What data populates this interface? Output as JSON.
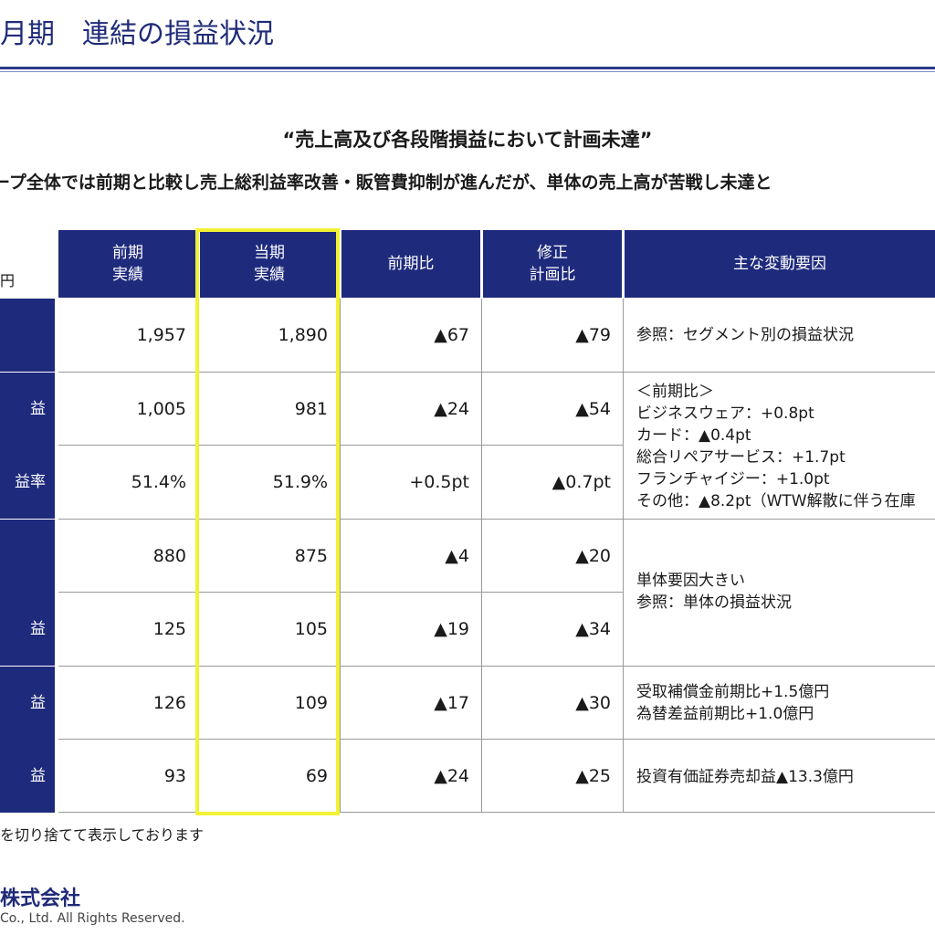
{
  "title": "月期　連結の損益状況",
  "headline": "“売上高及び各段階損益において計画未達”",
  "subline": "ープ全体では前期と比較し売上総利益率改善・販管費抑制が進んだが、単体の売上高が苦戦し未達と",
  "unit": "円",
  "table": {
    "headers": {
      "prev": "前期\n実績",
      "curr": "当期\n実績",
      "yoy": "前期比",
      "plan": "修正\n計画比",
      "factors": "主な変動要因"
    },
    "rows": [
      {
        "label": "",
        "prev": "1,957",
        "curr": "1,890",
        "yoy": "▲67",
        "plan": "▲79"
      },
      {
        "label": "益",
        "prev": "1,005",
        "curr": "981",
        "yoy": "▲24",
        "plan": "▲54"
      },
      {
        "label": "益率",
        "prev": "51.4%",
        "curr": "51.9%",
        "yoy": "+0.5pt",
        "plan": "▲0.7pt"
      },
      {
        "label": "",
        "prev": "880",
        "curr": "875",
        "yoy": "▲4",
        "plan": "▲20"
      },
      {
        "label": "益",
        "prev": "125",
        "curr": "105",
        "yoy": "▲19",
        "plan": "▲34"
      },
      {
        "label": "益",
        "prev": "126",
        "curr": "109",
        "yoy": "▲17",
        "plan": "▲30"
      },
      {
        "label": "益",
        "prev": "93",
        "curr": "69",
        "yoy": "▲24",
        "plan": "▲25"
      }
    ],
    "notes": {
      "n1": "参照：セグメント別の損益状況",
      "n2": "＜前期比＞\nビジネスウェア：+0.8pt\nカード：▲0.4pt\n総合リペアサービス：+1.7pt\nフランチャイジー：+1.0pt\nその他：▲8.2pt（WTW解散に伴う在庫",
      "n3": "単体要因大きい\n参照：単体の損益状況",
      "n4": "受取補償金前期比+1.5億円\n為替差益前期比+1.0億円",
      "n5": "投資有価証券売却益▲13.3億円"
    }
  },
  "footnote": "を切り捨てて表示しております",
  "company": "株式会社",
  "copyright": "Co., Ltd. All Rights Reserved.",
  "colors": {
    "accent": "#1e2a7c",
    "highlight": "#f2f234"
  }
}
